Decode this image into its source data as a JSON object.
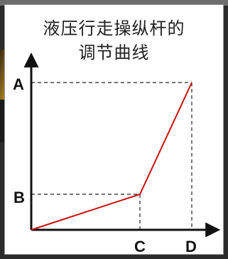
{
  "diagram": {
    "title_line1": "液压行走操纵杆的",
    "title_line2": "调节曲线",
    "labels": {
      "a": "A",
      "b": "B",
      "c": "C",
      "d": "D"
    },
    "colors": {
      "curve": "#cc1111",
      "axes": "#111111",
      "guide": "#222222",
      "photo_dark": "#1a1a1a",
      "photo_gold": "#c99a2a"
    }
  }
}
